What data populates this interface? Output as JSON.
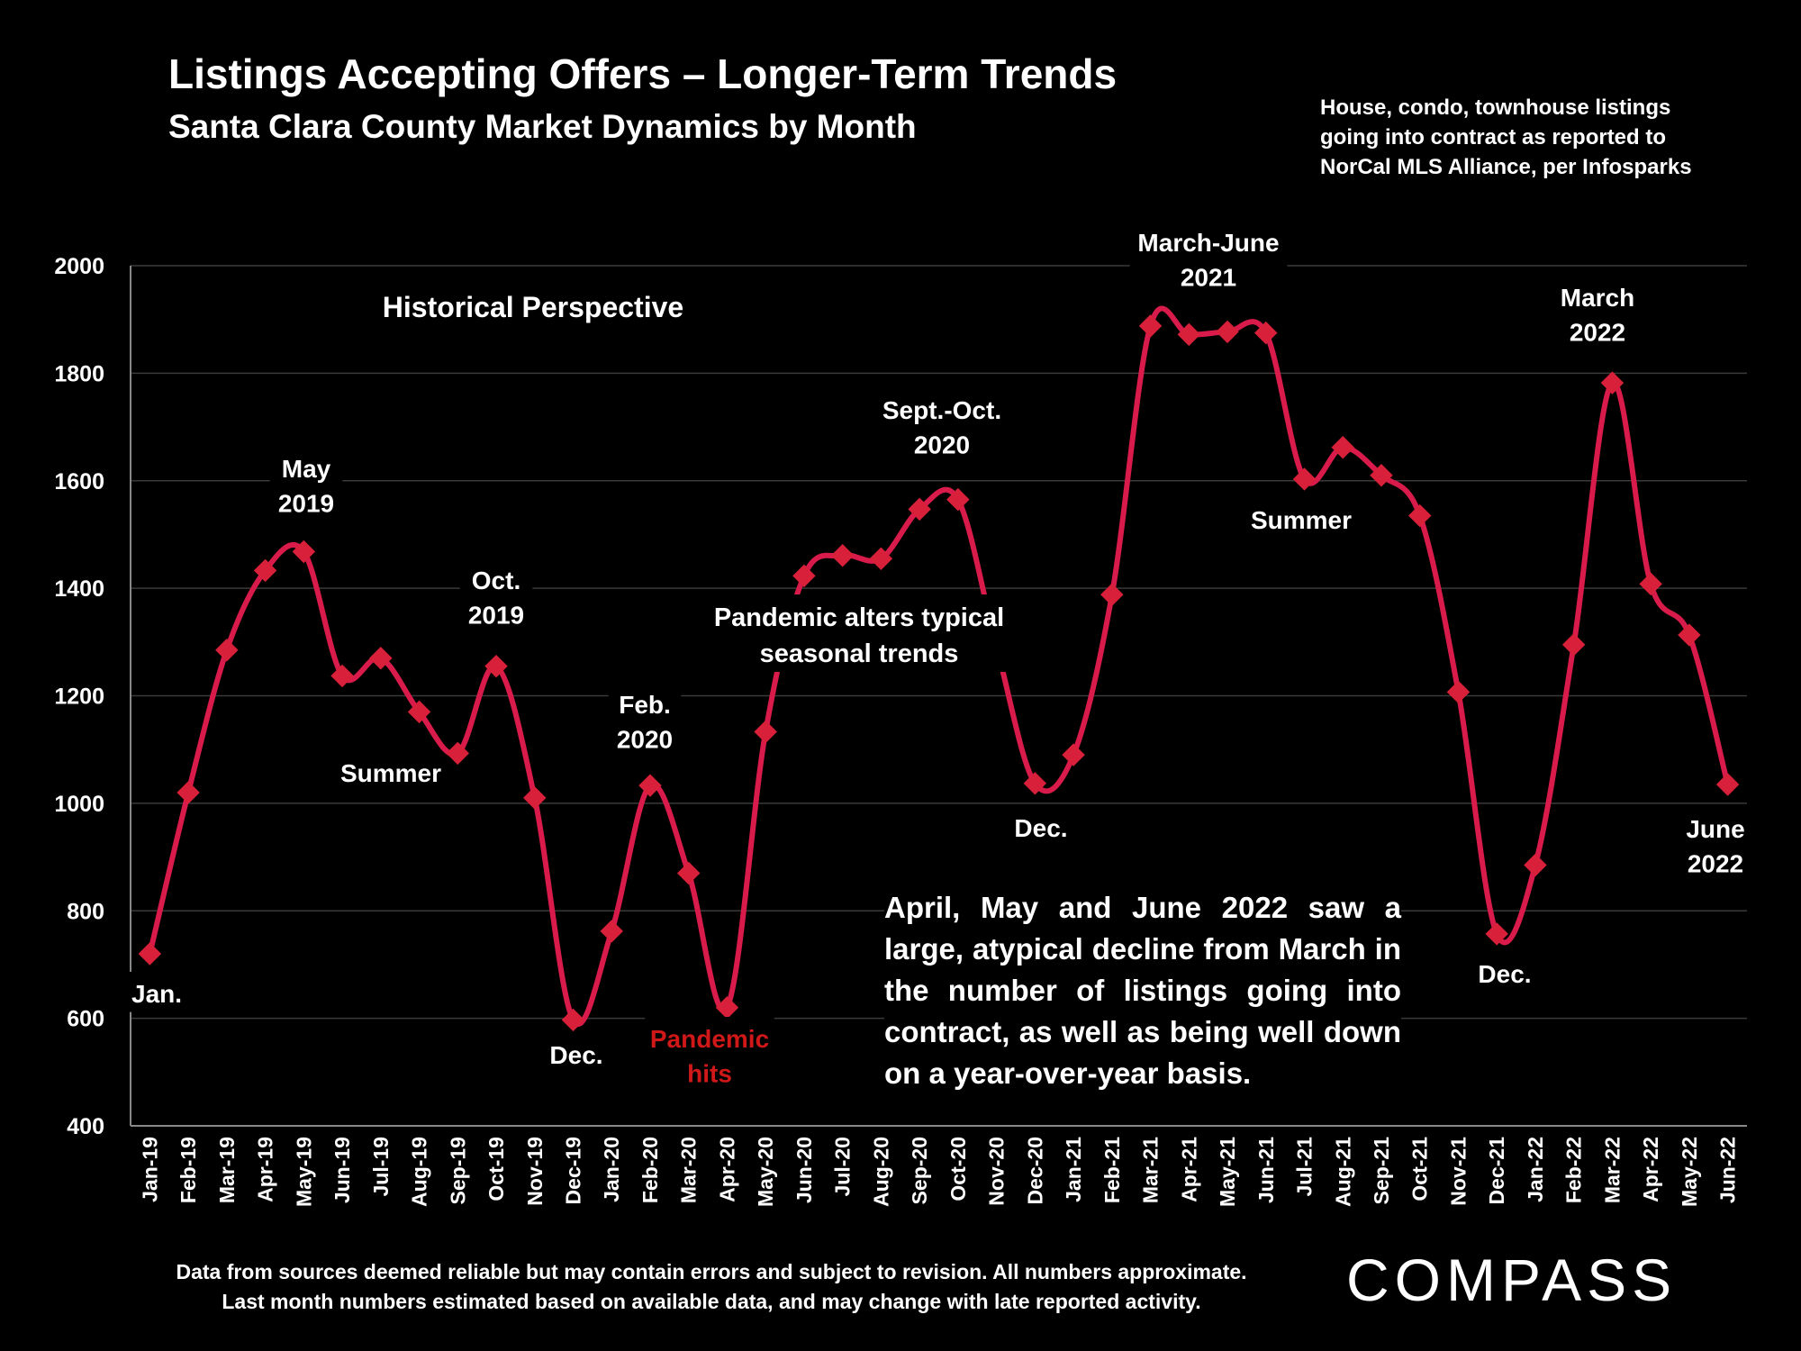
{
  "header": {
    "title": "Listings Accepting Offers – Longer-Term Trends",
    "subtitle": "Santa Clara County Market Dynamics by Month",
    "source_note": "House, condo, townhouse listings going into contract as reported to NorCal MLS Alliance, per Infosparks"
  },
  "footer": {
    "disclaimer_line1": "Data from sources deemed reliable but may contain errors and subject to revision. All numbers approximate.",
    "disclaimer_line2": "Last month numbers estimated based on available data, and may change with late reported activity.",
    "logo_text": "COMPASS"
  },
  "colors": {
    "background": "#000000",
    "line": "#d81b4a",
    "marker": "#d8203a",
    "pandemic_label": "#d01818",
    "gridline": "#3a3a3a"
  },
  "chart_data": {
    "type": "line",
    "title": "Listings Accepting Offers – Longer-Term Trends",
    "subtitle": "Santa Clara County Market Dynamics by Month",
    "ylim": [
      400,
      2000
    ],
    "yticks": [
      400,
      600,
      800,
      1000,
      1200,
      1400,
      1600,
      1800,
      2000
    ],
    "grid": true,
    "categories": [
      "Jan-19",
      "Feb-19",
      "Mar-19",
      "Apr-19",
      "May-19",
      "Jun-19",
      "Jul-19",
      "Aug-19",
      "Sep-19",
      "Oct-19",
      "Nov-19",
      "Dec-19",
      "Jan-20",
      "Feb-20",
      "Mar-20",
      "Apr-20",
      "May-20",
      "Jun-20",
      "Jul-20",
      "Aug-20",
      "Sep-20",
      "Oct-20",
      "Nov-20",
      "Dec-20",
      "Jan-21",
      "Feb-21",
      "Mar-21",
      "Apr-21",
      "May-21",
      "Jun-21",
      "Jul-21",
      "Aug-21",
      "Sep-21",
      "Oct-21",
      "Nov-21",
      "Dec-21",
      "Jan-22",
      "Feb-22",
      "Mar-22",
      "Apr-22",
      "May-22",
      "Jun-22"
    ],
    "series": [
      {
        "values": [
          720,
          1020,
          1285,
          1433,
          1468,
          1237,
          1270,
          1170,
          1093,
          1255,
          1010,
          597,
          762,
          1033,
          870,
          620,
          1133,
          1423,
          1461,
          1455,
          1547,
          1565,
          1292,
          1037,
          1090,
          1388,
          1888,
          1872,
          1877,
          1875,
          1603,
          1662,
          1610,
          1535,
          1207,
          757,
          885,
          1295,
          1782,
          1408,
          1313,
          1035
        ]
      }
    ],
    "annotations": [
      {
        "text": "Historical Perspective"
      },
      {
        "text": "Jan.",
        "category": "Jan-19"
      },
      {
        "text": "May 2019",
        "category": "May-19"
      },
      {
        "text": "Summer",
        "category": "Jul-19"
      },
      {
        "text": "Oct. 2019",
        "category": "Oct-19"
      },
      {
        "text": "Dec.",
        "category": "Dec-19"
      },
      {
        "text": "Feb. 2020",
        "category": "Feb-20"
      },
      {
        "text": "Pandemic hits",
        "category": "Apr-20"
      },
      {
        "text": "Pandemic alters typical seasonal trends"
      },
      {
        "text": "Sept.-Oct. 2020",
        "category": "Sep-20"
      },
      {
        "text": "Dec.",
        "category": "Dec-20"
      },
      {
        "text": "March-June 2021",
        "category": "Apr-21"
      },
      {
        "text": "Summer",
        "category": "Jul-21"
      },
      {
        "text": "Dec.",
        "category": "Dec-21"
      },
      {
        "text": "March 2022",
        "category": "Mar-22"
      },
      {
        "text": "June 2022",
        "category": "Jun-22"
      }
    ],
    "callout": "April, May and June 2022 saw a large, atypical decline from March in the number of listings going into contract, as well as being well down on a year-over-year basis."
  }
}
